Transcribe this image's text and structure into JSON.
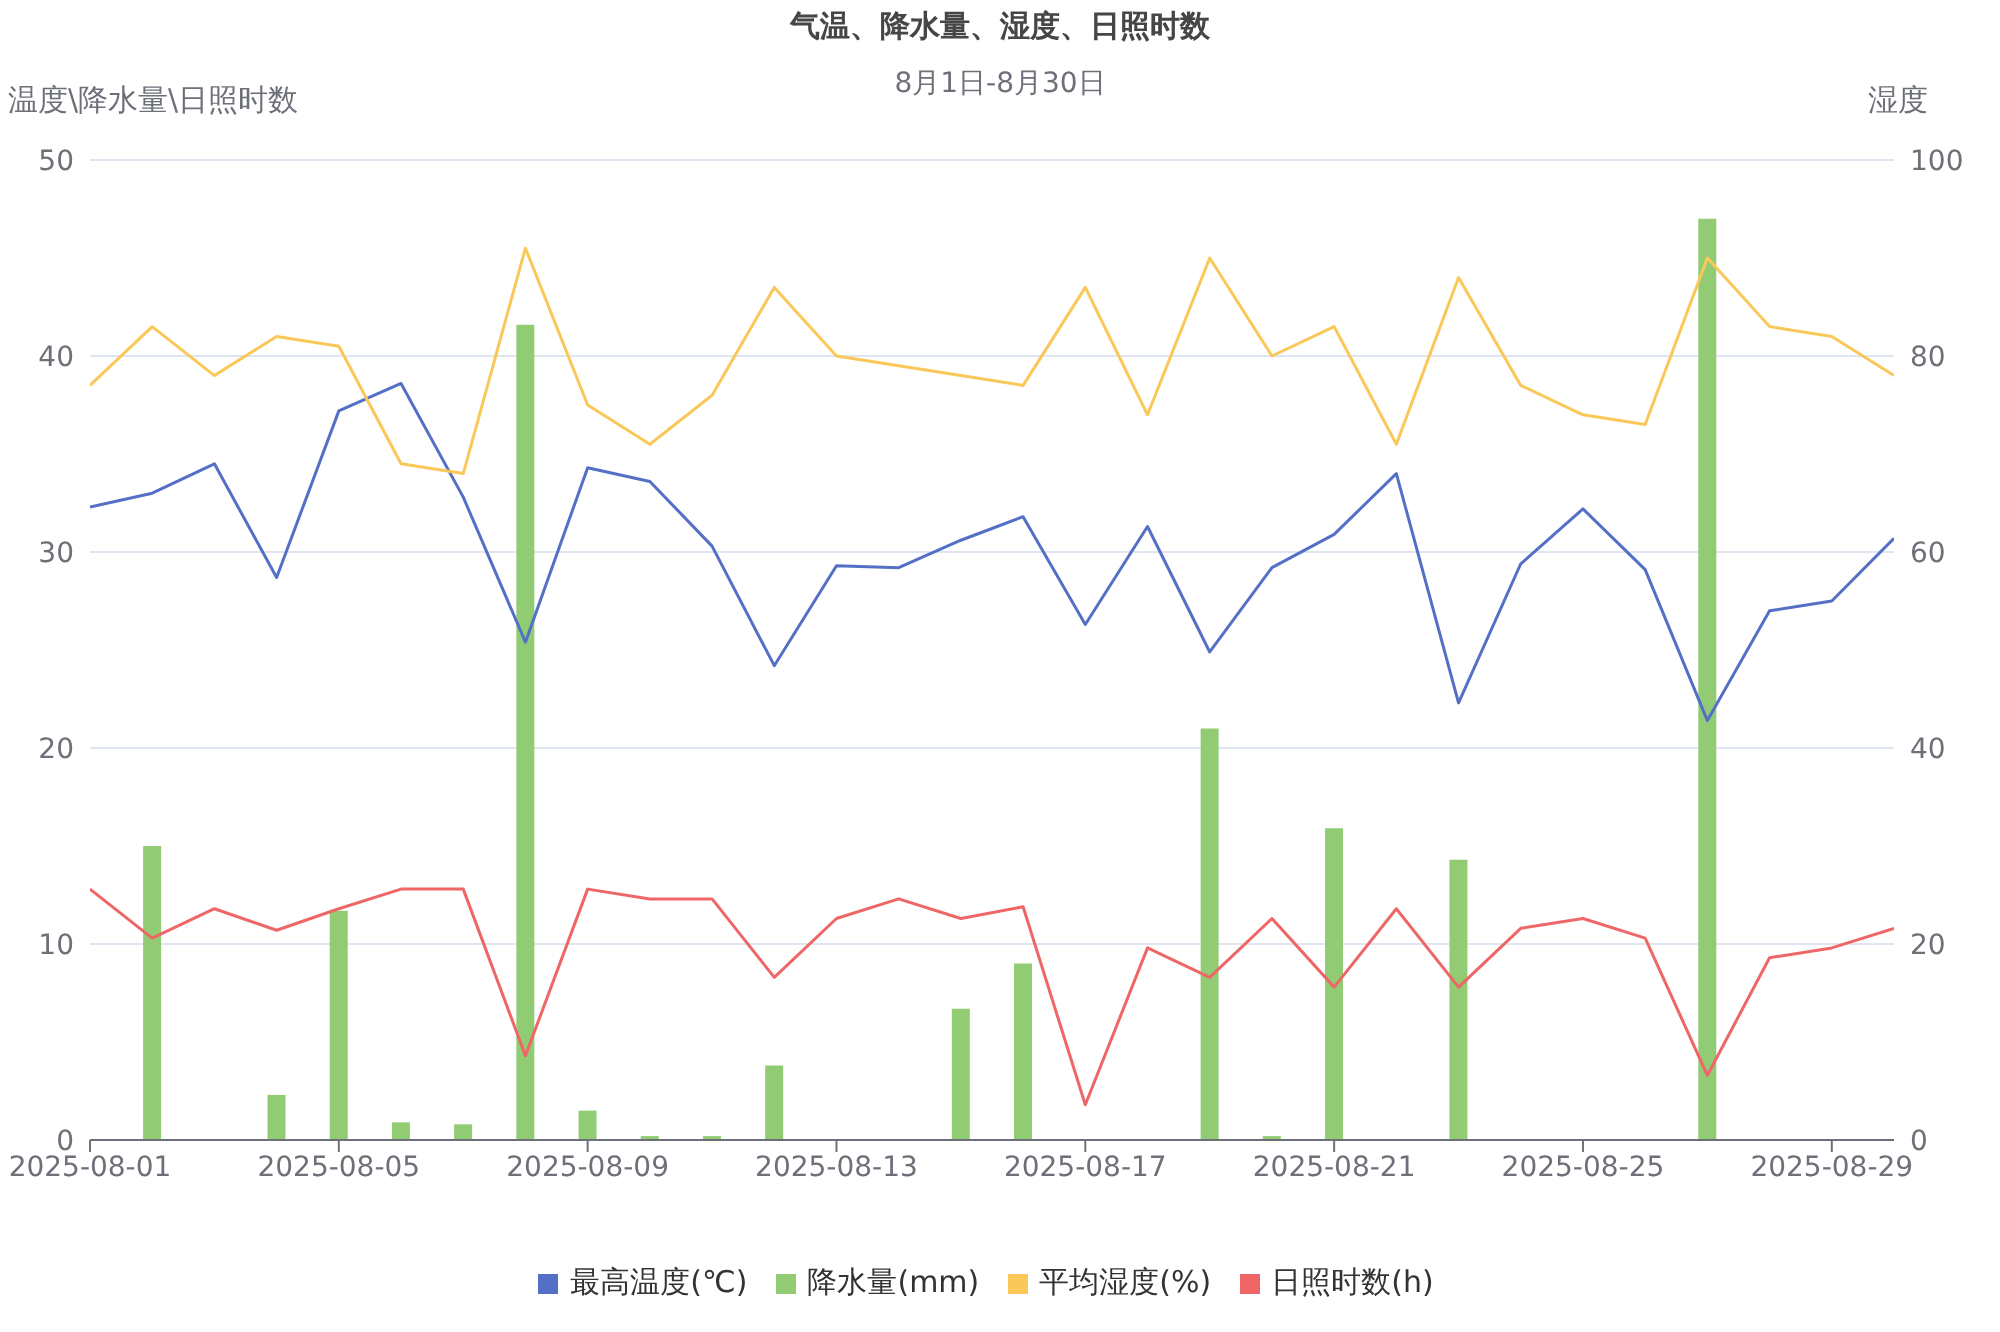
{
  "chart_data": {
    "type": "line",
    "title": "气温、降水量、湿度、日照时数",
    "subtitle": "8月1日-8月30日",
    "ylabel": "温度\\降水量\\日照时数",
    "y2label": "湿度",
    "categories": [
      "2025-08-01",
      null,
      null,
      null,
      "2025-08-05",
      null,
      null,
      null,
      "2025-08-09",
      null,
      null,
      null,
      "2025-08-13",
      null,
      null,
      null,
      "2025-08-17",
      null,
      null,
      null,
      "2025-08-21",
      null,
      null,
      null,
      "2025-08-25",
      null,
      null,
      null,
      "2025-08-29",
      null
    ],
    "series": [
      {
        "name": "最高温度(℃)",
        "color": "#5470c6",
        "values": [
          32.3,
          33.0,
          34.5,
          28.7,
          37.2,
          38.6,
          32.8,
          25.4,
          34.3,
          33.6,
          30.3,
          24.2,
          29.3,
          29.2,
          30.6,
          31.8,
          26.3,
          31.3,
          24.9,
          29.2,
          30.9,
          34.0,
          22.3,
          29.4,
          32.2,
          29.1,
          21.4,
          27.0,
          27.5,
          30.7
        ]
      },
      {
        "name": "降水量(mm)",
        "type": "bar",
        "color": "#91cc75",
        "values": [
          0,
          15.0,
          0,
          2.3,
          11.7,
          0.9,
          0.8,
          41.6,
          1.5,
          0.2,
          0.2,
          3.8,
          0,
          0,
          6.7,
          9.0,
          0,
          0,
          21.0,
          0.2,
          15.9,
          0,
          14.3,
          0,
          0,
          0,
          47.0,
          0,
          0,
          0
        ]
      },
      {
        "name": "平均湿度(%)",
        "axis": "y2",
        "color": "#fac858",
        "values": [
          77,
          83,
          78,
          82,
          81,
          69,
          68,
          91,
          75,
          71,
          76,
          87,
          80,
          79,
          78,
          77,
          87,
          74,
          90,
          80,
          83,
          71,
          88,
          77,
          74,
          73,
          90,
          83,
          82,
          78
        ]
      },
      {
        "name": "日照时数(h)",
        "color": "#ee6666",
        "values": [
          12.8,
          10.3,
          11.8,
          10.7,
          11.8,
          12.8,
          12.8,
          4.3,
          12.8,
          12.3,
          12.3,
          8.3,
          11.3,
          12.3,
          11.3,
          11.9,
          1.8,
          9.8,
          8.3,
          11.3,
          7.8,
          11.8,
          7.8,
          10.8,
          11.3,
          10.3,
          3.3,
          9.3,
          9.8,
          10.8
        ]
      }
    ],
    "ylim": [
      0,
      50
    ],
    "yticks": [
      0,
      10,
      20,
      30,
      40,
      50
    ],
    "y2lim": [
      0,
      100
    ],
    "y2ticks": [
      0,
      20,
      40,
      60,
      80,
      100
    ],
    "grid": "y",
    "legend": "bottom",
    "marker": "none"
  }
}
